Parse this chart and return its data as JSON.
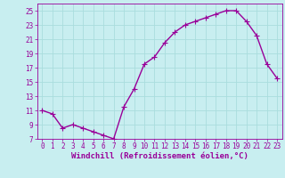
{
  "x": [
    0,
    1,
    2,
    3,
    4,
    5,
    6,
    7,
    8,
    9,
    10,
    11,
    12,
    13,
    14,
    15,
    16,
    17,
    18,
    19,
    20,
    21,
    22,
    23
  ],
  "y": [
    11.0,
    10.5,
    8.5,
    9.0,
    8.5,
    8.0,
    7.5,
    7.0,
    11.5,
    14.0,
    17.5,
    18.5,
    20.5,
    22.0,
    23.0,
    23.5,
    24.0,
    24.5,
    25.0,
    25.0,
    23.5,
    21.5,
    17.5,
    15.5
  ],
  "line_color": "#990099",
  "marker": "+",
  "marker_size": 4,
  "marker_linewidth": 0.8,
  "background_color": "#c8eef0",
  "grid_color": "#aadddd",
  "xlabel": "Windchill (Refroidissement éolien,°C)",
  "tick_fontsize": 5.5,
  "xlabel_fontsize": 6.5,
  "ylim": [
    7,
    26
  ],
  "xlim": [
    -0.5,
    23.5
  ],
  "yticks": [
    7,
    9,
    11,
    13,
    15,
    17,
    19,
    21,
    23,
    25
  ],
  "xticks": [
    0,
    1,
    2,
    3,
    4,
    5,
    6,
    7,
    8,
    9,
    10,
    11,
    12,
    13,
    14,
    15,
    16,
    17,
    18,
    19,
    20,
    21,
    22,
    23
  ],
  "line_width": 1.0
}
